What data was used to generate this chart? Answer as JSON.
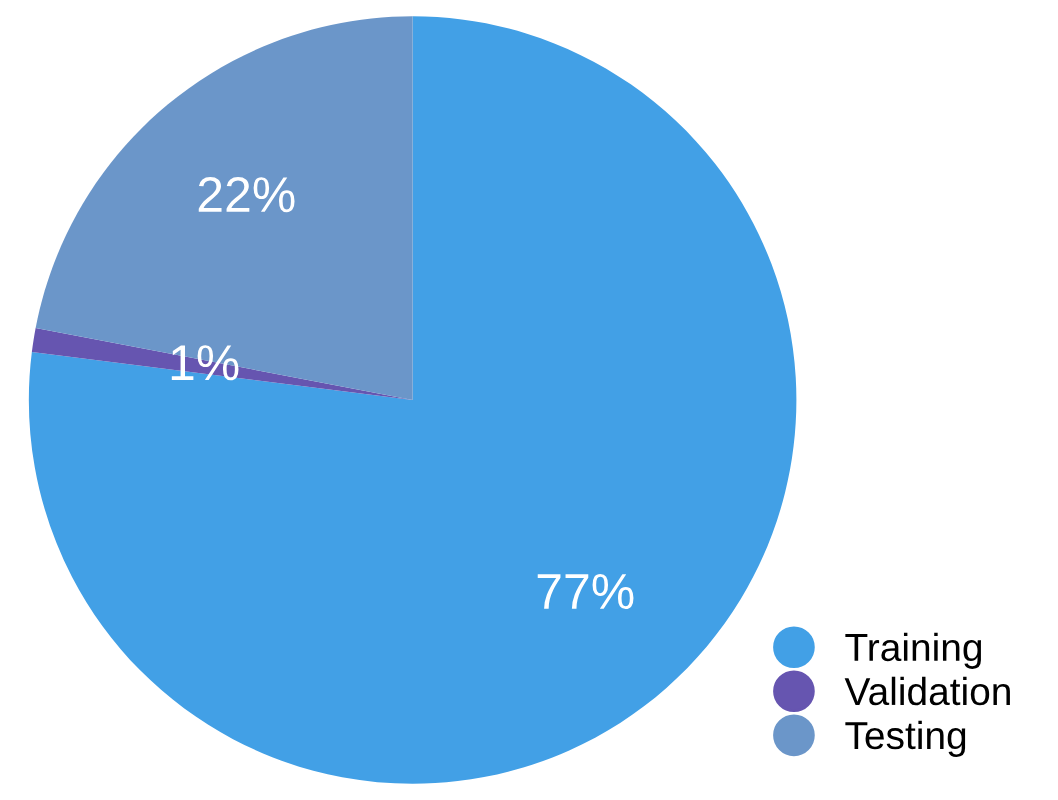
{
  "chart_data": {
    "type": "pie",
    "categories": [
      "Training",
      "Validation",
      "Testing"
    ],
    "values": [
      77,
      1,
      22
    ],
    "value_labels": [
      "77%",
      "1%",
      "22%"
    ],
    "colors": [
      "#42a0e6",
      "#6655b0",
      "#6b96c9"
    ],
    "legend": "bottom right"
  }
}
